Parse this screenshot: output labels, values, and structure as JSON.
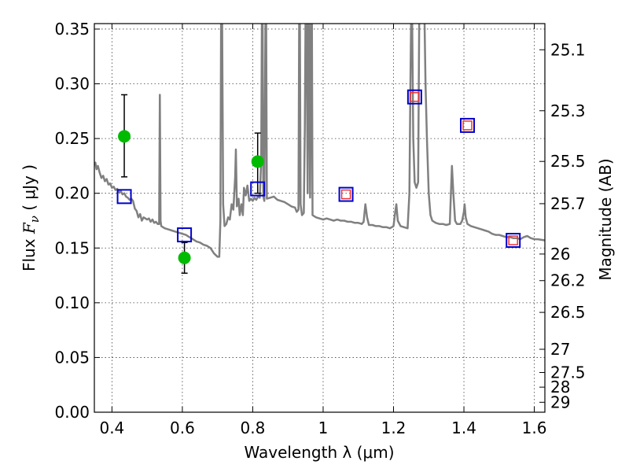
{
  "chart_data": {
    "type": "scatter",
    "title": "",
    "xlabel": "Wavelength  λ (μm)",
    "ylabel_parts": [
      "Flux  ",
      "F",
      "ν",
      "  ( μJy )"
    ],
    "y2label": "Magnitude (AB)",
    "xlim": [
      0.35,
      1.63
    ],
    "ylim": [
      0.0,
      0.355
    ],
    "xticks": [
      0.4,
      0.6,
      0.8,
      1.0,
      1.2,
      1.4,
      1.6
    ],
    "xtick_labels": [
      "0.4",
      "0.6",
      "0.8",
      "1",
      "1.2",
      "1.4",
      "1.6"
    ],
    "yticks": [
      0.0,
      0.05,
      0.1,
      0.15,
      0.2,
      0.25,
      0.3,
      0.35
    ],
    "ytick_labels": [
      "0.00",
      "0.05",
      "0.10",
      "0.15",
      "0.20",
      "0.25",
      "0.30",
      "0.35"
    ],
    "magnitude_ticks": [
      {
        "label": "25.1",
        "flux": 0.3311
      },
      {
        "label": "25.3",
        "flux": 0.2754
      },
      {
        "label": "25.5",
        "flux": 0.2291
      },
      {
        "label": "25.7",
        "flux": 0.1905
      },
      {
        "label": "26",
        "flux": 0.1445
      },
      {
        "label": "26.2",
        "flux": 0.1202
      },
      {
        "label": "26.5",
        "flux": 0.0912
      },
      {
        "label": "27",
        "flux": 0.0575
      },
      {
        "label": "27.5",
        "flux": 0.0363
      },
      {
        "label": "28",
        "flux": 0.0229
      },
      {
        "label": "29",
        "flux": 0.0091
      }
    ],
    "grid": true,
    "series": [
      {
        "kind": "model_spectrum",
        "color": "#808080",
        "points": [
          [
            0.35,
            0.226
          ],
          [
            0.353,
            0.228
          ],
          [
            0.356,
            0.222
          ],
          [
            0.36,
            0.225
          ],
          [
            0.365,
            0.219
          ],
          [
            0.37,
            0.214
          ],
          [
            0.375,
            0.216
          ],
          [
            0.38,
            0.211
          ],
          [
            0.385,
            0.213
          ],
          [
            0.39,
            0.208
          ],
          [
            0.395,
            0.209
          ],
          [
            0.4,
            0.205
          ],
          [
            0.405,
            0.206
          ],
          [
            0.41,
            0.203
          ],
          [
            0.415,
            0.204
          ],
          [
            0.42,
            0.201
          ],
          [
            0.425,
            0.202
          ],
          [
            0.43,
            0.199
          ],
          [
            0.435,
            0.2
          ],
          [
            0.44,
            0.197
          ],
          [
            0.445,
            0.196
          ],
          [
            0.45,
            0.194
          ],
          [
            0.455,
            0.195
          ],
          [
            0.46,
            0.193
          ],
          [
            0.465,
            0.186
          ],
          [
            0.47,
            0.184
          ],
          [
            0.475,
            0.178
          ],
          [
            0.48,
            0.181
          ],
          [
            0.485,
            0.175
          ],
          [
            0.49,
            0.178
          ],
          [
            0.5,
            0.176
          ],
          [
            0.505,
            0.177
          ],
          [
            0.51,
            0.174
          ],
          [
            0.515,
            0.176
          ],
          [
            0.52,
            0.173
          ],
          [
            0.525,
            0.174
          ],
          [
            0.53,
            0.172
          ],
          [
            0.534,
            0.172
          ],
          [
            0.536,
            0.29
          ],
          [
            0.538,
            0.175
          ],
          [
            0.54,
            0.17
          ],
          [
            0.55,
            0.168
          ],
          [
            0.56,
            0.167
          ],
          [
            0.57,
            0.166
          ],
          [
            0.58,
            0.165
          ],
          [
            0.59,
            0.164
          ],
          [
            0.6,
            0.163
          ],
          [
            0.61,
            0.162
          ],
          [
            0.62,
            0.16
          ],
          [
            0.63,
            0.158
          ],
          [
            0.64,
            0.156
          ],
          [
            0.65,
            0.155
          ],
          [
            0.66,
            0.153
          ],
          [
            0.67,
            0.152
          ],
          [
            0.68,
            0.15
          ],
          [
            0.69,
            0.145
          ],
          [
            0.7,
            0.142
          ],
          [
            0.705,
            0.142
          ],
          [
            0.708,
            0.175
          ],
          [
            0.71,
            0.36
          ],
          [
            0.713,
            0.36
          ],
          [
            0.716,
            0.19
          ],
          [
            0.72,
            0.17
          ],
          [
            0.725,
            0.172
          ],
          [
            0.73,
            0.178
          ],
          [
            0.735,
            0.176
          ],
          [
            0.74,
            0.19
          ],
          [
            0.745,
            0.185
          ],
          [
            0.75,
            0.215
          ],
          [
            0.752,
            0.24
          ],
          [
            0.755,
            0.188
          ],
          [
            0.76,
            0.195
          ],
          [
            0.763,
            0.18
          ],
          [
            0.768,
            0.19
          ],
          [
            0.772,
            0.18
          ],
          [
            0.775,
            0.205
          ],
          [
            0.78,
            0.198
          ],
          [
            0.785,
            0.207
          ],
          [
            0.79,
            0.193
          ],
          [
            0.795,
            0.195
          ],
          [
            0.8,
            0.193
          ],
          [
            0.805,
            0.196
          ],
          [
            0.81,
            0.194
          ],
          [
            0.815,
            0.197
          ],
          [
            0.82,
            0.196
          ],
          [
            0.824,
            0.23
          ],
          [
            0.826,
            0.36
          ],
          [
            0.828,
            0.36
          ],
          [
            0.83,
            0.197
          ],
          [
            0.833,
            0.193
          ],
          [
            0.836,
            0.355
          ],
          [
            0.838,
            0.36
          ],
          [
            0.84,
            0.195
          ],
          [
            0.85,
            0.196
          ],
          [
            0.86,
            0.197
          ],
          [
            0.87,
            0.194
          ],
          [
            0.88,
            0.193
          ],
          [
            0.89,
            0.192
          ],
          [
            0.9,
            0.19
          ],
          [
            0.91,
            0.188
          ],
          [
            0.92,
            0.187
          ],
          [
            0.925,
            0.183
          ],
          [
            0.93,
            0.185
          ],
          [
            0.932,
            0.36
          ],
          [
            0.934,
            0.36
          ],
          [
            0.936,
            0.19
          ],
          [
            0.94,
            0.18
          ],
          [
            0.945,
            0.182
          ],
          [
            0.948,
            0.26
          ],
          [
            0.95,
            0.36
          ],
          [
            0.953,
            0.36
          ],
          [
            0.956,
            0.2
          ],
          [
            0.958,
            0.36
          ],
          [
            0.96,
            0.36
          ],
          [
            0.963,
            0.196
          ],
          [
            0.966,
            0.36
          ],
          [
            0.968,
            0.36
          ],
          [
            0.97,
            0.18
          ],
          [
            0.98,
            0.178
          ],
          [
            0.99,
            0.177
          ],
          [
            1.0,
            0.176
          ],
          [
            1.01,
            0.177
          ],
          [
            1.02,
            0.176
          ],
          [
            1.03,
            0.175
          ],
          [
            1.04,
            0.176
          ],
          [
            1.05,
            0.175
          ],
          [
            1.06,
            0.175
          ],
          [
            1.07,
            0.174
          ],
          [
            1.08,
            0.174
          ],
          [
            1.09,
            0.173
          ],
          [
            1.1,
            0.173
          ],
          [
            1.11,
            0.172
          ],
          [
            1.115,
            0.174
          ],
          [
            1.12,
            0.19
          ],
          [
            1.125,
            0.178
          ],
          [
            1.13,
            0.171
          ],
          [
            1.14,
            0.171
          ],
          [
            1.15,
            0.17
          ],
          [
            1.16,
            0.17
          ],
          [
            1.17,
            0.169
          ],
          [
            1.18,
            0.169
          ],
          [
            1.19,
            0.168
          ],
          [
            1.2,
            0.17
          ],
          [
            1.205,
            0.183
          ],
          [
            1.208,
            0.19
          ],
          [
            1.212,
            0.175
          ],
          [
            1.22,
            0.17
          ],
          [
            1.23,
            0.169
          ],
          [
            1.24,
            0.168
          ],
          [
            1.245,
            0.2
          ],
          [
            1.248,
            0.3
          ],
          [
            1.25,
            0.36
          ],
          [
            1.253,
            0.36
          ],
          [
            1.256,
            0.25
          ],
          [
            1.26,
            0.21
          ],
          [
            1.265,
            0.205
          ],
          [
            1.27,
            0.21
          ],
          [
            1.273,
            0.36
          ],
          [
            1.276,
            0.36
          ],
          [
            1.28,
            0.36
          ],
          [
            1.285,
            0.36
          ],
          [
            1.288,
            0.36
          ],
          [
            1.291,
            0.3
          ],
          [
            1.295,
            0.25
          ],
          [
            1.3,
            0.2
          ],
          [
            1.305,
            0.18
          ],
          [
            1.31,
            0.175
          ],
          [
            1.32,
            0.173
          ],
          [
            1.33,
            0.172
          ],
          [
            1.34,
            0.172
          ],
          [
            1.35,
            0.171
          ],
          [
            1.36,
            0.172
          ],
          [
            1.363,
            0.2
          ],
          [
            1.366,
            0.225
          ],
          [
            1.37,
            0.2
          ],
          [
            1.375,
            0.175
          ],
          [
            1.38,
            0.172
          ],
          [
            1.39,
            0.172
          ],
          [
            1.395,
            0.175
          ],
          [
            1.4,
            0.183
          ],
          [
            1.402,
            0.19
          ],
          [
            1.405,
            0.178
          ],
          [
            1.41,
            0.172
          ],
          [
            1.42,
            0.17
          ],
          [
            1.43,
            0.169
          ],
          [
            1.44,
            0.168
          ],
          [
            1.45,
            0.167
          ],
          [
            1.46,
            0.166
          ],
          [
            1.47,
            0.165
          ],
          [
            1.48,
            0.163
          ],
          [
            1.49,
            0.162
          ],
          [
            1.5,
            0.162
          ],
          [
            1.51,
            0.161
          ],
          [
            1.52,
            0.16
          ],
          [
            1.53,
            0.16
          ],
          [
            1.54,
            0.159
          ],
          [
            1.55,
            0.159
          ],
          [
            1.56,
            0.158
          ],
          [
            1.57,
            0.16
          ],
          [
            1.58,
            0.161
          ],
          [
            1.59,
            0.159
          ],
          [
            1.6,
            0.158
          ],
          [
            1.61,
            0.158
          ],
          [
            1.63,
            0.157
          ]
        ]
      },
      {
        "kind": "observed",
        "marker": "circle",
        "color": "#00bb00",
        "points": [
          {
            "x": 0.435,
            "y": 0.252,
            "yerr_low": 0.215,
            "yerr_high": 0.29
          },
          {
            "x": 0.606,
            "y": 0.141,
            "yerr_low": 0.127,
            "yerr_high": 0.155
          },
          {
            "x": 0.814,
            "y": 0.229,
            "yerr_low": 0.2,
            "yerr_high": 0.255
          }
        ]
      },
      {
        "kind": "model_photometry",
        "marker": "square",
        "color": "#0000cc",
        "points": [
          {
            "x": 0.435,
            "y": 0.197
          },
          {
            "x": 0.606,
            "y": 0.162
          },
          {
            "x": 0.814,
            "y": 0.204
          },
          {
            "x": 1.065,
            "y": 0.199
          },
          {
            "x": 1.26,
            "y": 0.288
          },
          {
            "x": 1.41,
            "y": 0.262
          },
          {
            "x": 1.54,
            "y": 0.157
          }
        ]
      },
      {
        "kind": "model_photometry_inner",
        "marker": "square",
        "color": "#ee3333",
        "points": [
          {
            "x": 1.065,
            "y": 0.199
          },
          {
            "x": 1.26,
            "y": 0.288
          },
          {
            "x": 1.41,
            "y": 0.262
          },
          {
            "x": 1.54,
            "y": 0.157
          }
        ]
      }
    ]
  }
}
